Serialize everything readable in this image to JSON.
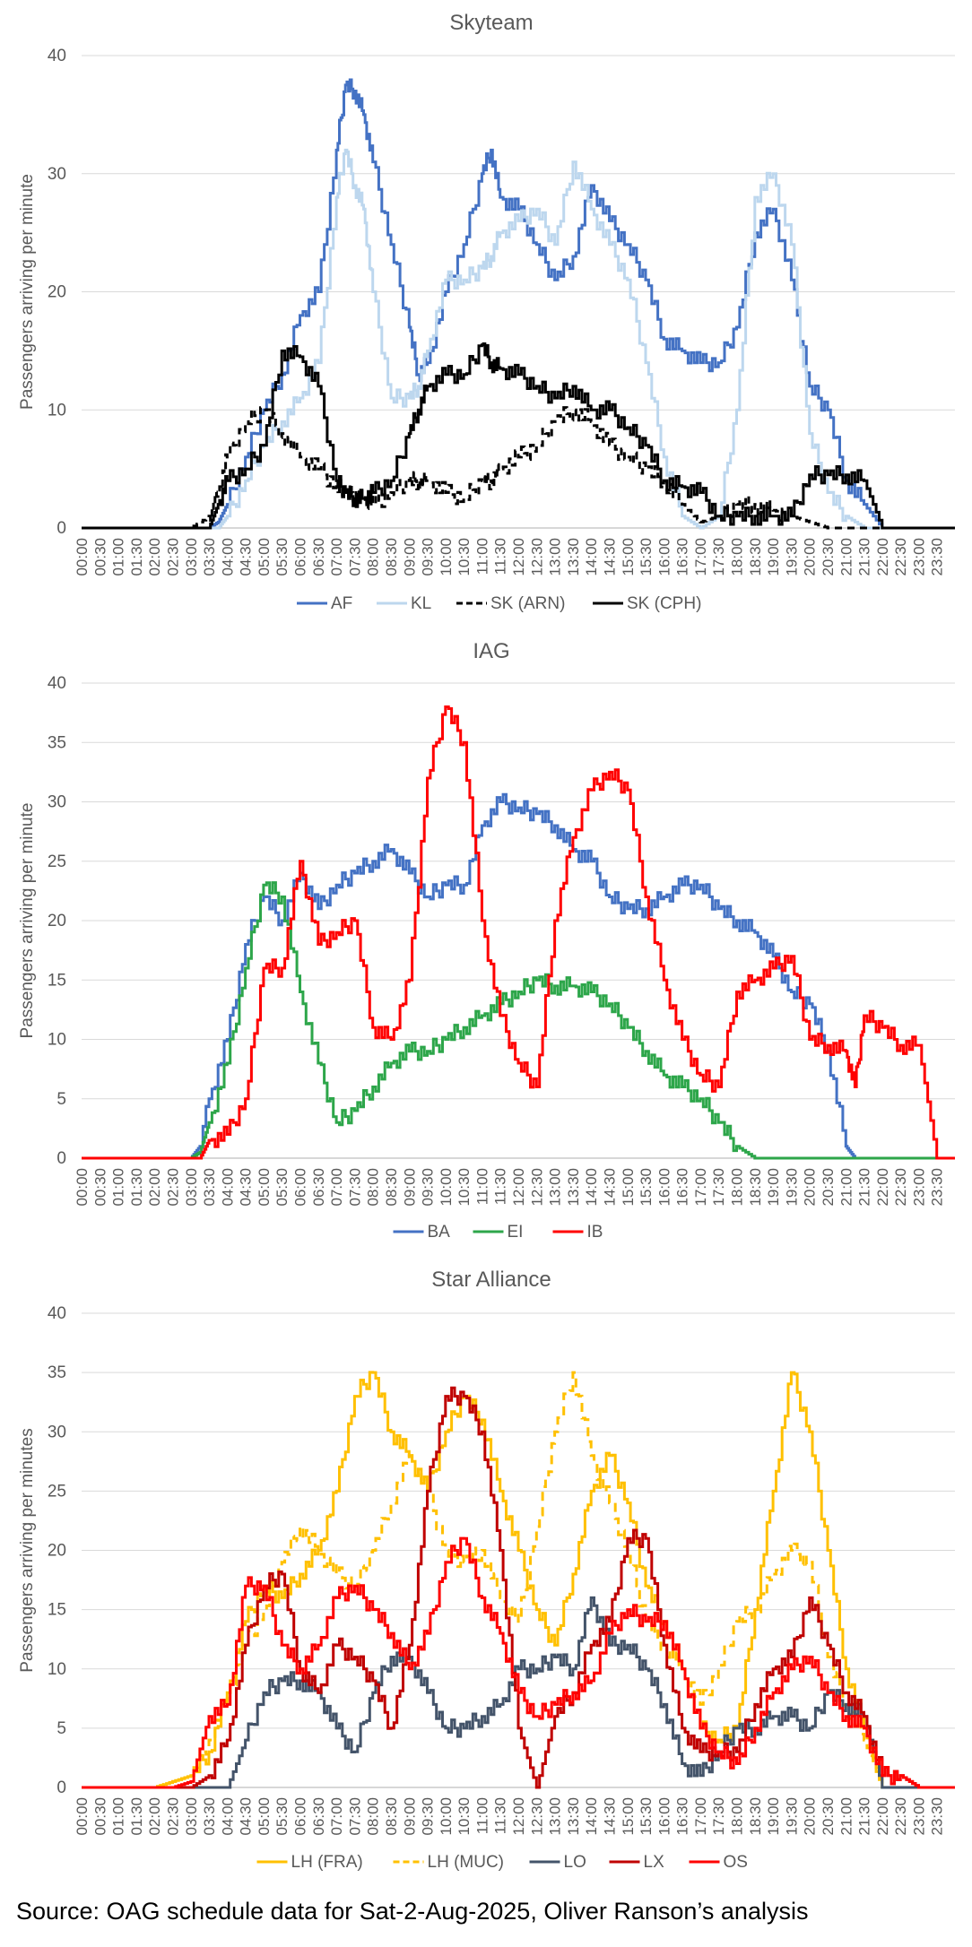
{
  "source_note": "Source: OAG schedule data for Sat-2-Aug-2025, Oliver Ranson’s analysis",
  "chart_data": [
    {
      "type": "line",
      "title": "Skyteam",
      "ylabel": "Passengers arriving per minute",
      "xlabel": "",
      "ylim": [
        0,
        40
      ],
      "yticks": [
        0,
        10,
        20,
        30,
        40
      ],
      "grid": true,
      "legend": "bottom",
      "x_ticks": [
        "00:00",
        "00:30",
        "01:00",
        "01:30",
        "02:00",
        "02:30",
        "03:00",
        "03:30",
        "04:00",
        "04:30",
        "05:00",
        "05:30",
        "06:00",
        "06:30",
        "07:00",
        "07:30",
        "08:00",
        "08:30",
        "09:00",
        "09:30",
        "10:00",
        "10:30",
        "11:00",
        "11:30",
        "12:00",
        "12:30",
        "13:00",
        "13:30",
        "14:00",
        "14:30",
        "15:00",
        "15:30",
        "16:00",
        "16:30",
        "17:00",
        "17:30",
        "18:00",
        "18:30",
        "19:00",
        "19:30",
        "20:00",
        "20:30",
        "21:00",
        "21:30",
        "22:00",
        "22:30",
        "23:00",
        "23:30"
      ],
      "x_hours": [
        0,
        1,
        2,
        2.5,
        3,
        3.5,
        3.75,
        4,
        4.5,
        5,
        5.5,
        6,
        6.5,
        7,
        7.25,
        7.5,
        7.75,
        8,
        8.5,
        9,
        9.25,
        9.5,
        10,
        10.5,
        11,
        11.25,
        11.5,
        12,
        12.5,
        13,
        13.5,
        14,
        14.5,
        15,
        15.5,
        16,
        16.5,
        17,
        17.5,
        18,
        18.5,
        19,
        19.5,
        20,
        20.5,
        21,
        21.5,
        22,
        22.5,
        23,
        24
      ],
      "series": [
        {
          "name": "AF",
          "color": "#4472C4",
          "dash": "",
          "values": [
            0,
            0,
            0,
            0,
            0,
            0,
            0.5,
            2,
            6,
            10,
            13,
            18,
            20,
            32,
            37.5,
            37,
            35,
            31,
            24,
            17,
            13,
            14,
            20,
            24,
            30,
            32,
            28,
            27,
            24,
            21,
            23,
            29,
            26,
            24,
            21,
            16,
            15,
            14,
            14,
            17,
            25,
            27,
            21,
            12,
            10,
            4,
            2,
            0,
            0,
            0,
            0
          ]
        },
        {
          "name": "KL",
          "color": "#BDD7EE",
          "dash": "",
          "values": [
            0,
            0,
            0,
            0,
            0,
            0,
            0,
            1,
            4,
            7,
            9,
            11,
            14,
            28,
            32,
            29,
            27,
            20,
            11,
            11,
            12,
            15,
            21,
            21,
            22,
            23,
            25,
            26,
            27,
            24,
            31,
            27,
            24,
            21,
            14,
            6,
            1,
            0,
            1,
            10,
            28,
            30,
            24,
            8,
            3,
            1,
            0,
            0,
            0,
            0,
            0
          ]
        },
        {
          "name": "SK (ARN)",
          "color": "#000000",
          "dash": "8 6",
          "values": [
            0,
            0,
            0,
            0,
            0,
            1,
            3,
            6,
            9,
            10,
            8,
            6,
            5,
            3.5,
            3,
            3,
            2.5,
            2,
            3,
            4,
            4,
            4,
            3,
            2.5,
            4,
            4,
            5,
            6,
            7,
            9,
            10,
            9,
            7,
            6,
            5,
            4,
            2,
            0.5,
            1,
            2,
            2,
            1.5,
            1,
            0.5,
            0,
            0,
            0,
            0,
            0,
            0,
            0
          ]
        },
        {
          "name": "SK (CPH)",
          "color": "#000000",
          "dash": "",
          "values": [
            0,
            0,
            0,
            0,
            0,
            0,
            2,
            4,
            5,
            7,
            15,
            14.5,
            12,
            4,
            3,
            2.5,
            2.5,
            3,
            4,
            8,
            10,
            12,
            13,
            13,
            15.5,
            14,
            13.5,
            13,
            12,
            11,
            12,
            10,
            10,
            8.5,
            7,
            4,
            3.5,
            3,
            1,
            1,
            1,
            1,
            1,
            4.5,
            4.5,
            4.5,
            4,
            0,
            0,
            0,
            0
          ]
        }
      ]
    },
    {
      "type": "line",
      "title": "IAG",
      "ylabel": "Passengers arriving per minute",
      "xlabel": "",
      "ylim": [
        0,
        40
      ],
      "yticks": [
        0,
        5,
        10,
        15,
        20,
        25,
        30,
        35,
        40
      ],
      "grid": true,
      "legend": "bottom",
      "x_ticks": [
        "00:00",
        "00:30",
        "01:00",
        "01:30",
        "02:00",
        "02:30",
        "03:00",
        "03:30",
        "04:00",
        "04:30",
        "05:00",
        "05:30",
        "06:00",
        "06:30",
        "07:00",
        "07:30",
        "08:00",
        "08:30",
        "09:00",
        "09:30",
        "10:00",
        "10:30",
        "11:00",
        "11:30",
        "12:00",
        "12:30",
        "13:00",
        "13:30",
        "14:00",
        "14:30",
        "15:00",
        "15:30",
        "16:00",
        "16:30",
        "17:00",
        "17:30",
        "18:00",
        "18:30",
        "19:00",
        "19:30",
        "20:00",
        "20:30",
        "21:00",
        "21:30",
        "22:00",
        "22:30",
        "23:00",
        "23:30"
      ],
      "x_hours": [
        0,
        1,
        2,
        2.5,
        3,
        3.25,
        3.5,
        4,
        4.5,
        5,
        5.5,
        6,
        6.5,
        7,
        7.5,
        8,
        8.5,
        9,
        9.5,
        10,
        10.5,
        11,
        11.5,
        12,
        12.5,
        13,
        13.5,
        14,
        14.5,
        15,
        15.5,
        16,
        16.5,
        17,
        17.5,
        18,
        18.5,
        19,
        19.5,
        20,
        20.5,
        21,
        21.25,
        21.5,
        22,
        22.5,
        23,
        23.5,
        24
      ],
      "series": [
        {
          "name": "BA",
          "color": "#4472C4",
          "dash": "",
          "values": [
            0,
            0,
            0,
            0,
            0,
            1,
            5,
            10,
            18,
            22,
            20,
            24,
            21,
            23,
            24,
            25,
            26,
            24,
            22,
            23,
            23,
            28,
            30,
            29.5,
            29,
            28,
            26,
            25,
            22,
            21,
            21,
            22,
            23,
            23,
            21,
            20,
            19,
            17,
            14,
            13,
            9,
            1,
            0,
            0,
            0,
            0,
            0,
            0,
            0
          ]
        },
        {
          "name": "EI",
          "color": "#2DA64A",
          "dash": "",
          "values": [
            0,
            0,
            0,
            0,
            0,
            0.5,
            3,
            8,
            16,
            23,
            22,
            14,
            8,
            3,
            4,
            6,
            8,
            9,
            9,
            10,
            11,
            12,
            13,
            14,
            15,
            14.5,
            14.5,
            14,
            13,
            11,
            9,
            7,
            6,
            5,
            3,
            1,
            0,
            0,
            0,
            0,
            0,
            0,
            0,
            0,
            0,
            0,
            0,
            0,
            0
          ]
        },
        {
          "name": "IB",
          "color": "#FF0000",
          "dash": "",
          "values": [
            0,
            0,
            0,
            0,
            0,
            0,
            1.5,
            2,
            5,
            16,
            16,
            25,
            18,
            19,
            20,
            11,
            10,
            15,
            32,
            38,
            35,
            20,
            12,
            8,
            6,
            20,
            27,
            31,
            32.5,
            31,
            22,
            15,
            10,
            7,
            6,
            14,
            15,
            16,
            17,
            10,
            9.5,
            9,
            6,
            12,
            11,
            9.5,
            9.5,
            0,
            0
          ]
        }
      ]
    },
    {
      "type": "line",
      "title": "Star Alliance",
      "ylabel": "Passengers arriving per minutes",
      "xlabel": "",
      "ylim": [
        0,
        40
      ],
      "yticks": [
        0,
        5,
        10,
        15,
        20,
        25,
        30,
        35,
        40
      ],
      "grid": true,
      "legend": "bottom",
      "x_ticks": [
        "00:00",
        "00:30",
        "01:00",
        "01:30",
        "02:00",
        "02:30",
        "03:00",
        "03:30",
        "04:00",
        "04:30",
        "05:00",
        "05:30",
        "06:00",
        "06:30",
        "07:00",
        "07:30",
        "08:00",
        "08:30",
        "09:00",
        "09:30",
        "10:00",
        "10:30",
        "11:00",
        "11:30",
        "12:00",
        "12:30",
        "13:00",
        "13:30",
        "14:00",
        "14:30",
        "15:00",
        "15:30",
        "16:00",
        "16:30",
        "17:00",
        "17:30",
        "18:00",
        "18:30",
        "19:00",
        "19:30",
        "20:00",
        "20:30",
        "21:00",
        "21:30",
        "22:00",
        "22:30",
        "23:00",
        "23:30"
      ],
      "x_hours": [
        0,
        1,
        2,
        2.5,
        3,
        3.5,
        4,
        4.5,
        5,
        5.5,
        6,
        6.5,
        7,
        7.5,
        8,
        8.5,
        9,
        9.5,
        10,
        10.5,
        11,
        11.5,
        12,
        12.5,
        13,
        13.5,
        14,
        14.5,
        15,
        15.5,
        16,
        16.5,
        17,
        17.5,
        18,
        18.5,
        19,
        19.5,
        20,
        20.5,
        21,
        21.5,
        22,
        22.5,
        23,
        24
      ],
      "series": [
        {
          "name": "LH (FRA)",
          "color": "#FFC000",
          "dash": "",
          "values": [
            0,
            0,
            0,
            0.5,
            1,
            3,
            8,
            14,
            17,
            16,
            18,
            20,
            25,
            33,
            35,
            30,
            28,
            25,
            30,
            33,
            31,
            25,
            20,
            15,
            12,
            18,
            25,
            28,
            24,
            17,
            14,
            10,
            5,
            4,
            5,
            15,
            25,
            35,
            30,
            20,
            10,
            5,
            0,
            0,
            0,
            0
          ]
        },
        {
          "name": "LH (MUC)",
          "color": "#FFC000",
          "dash": "10 7",
          "values": [
            0,
            0,
            0,
            0.5,
            1,
            4,
            8,
            12,
            15,
            19,
            22,
            20,
            18,
            17,
            20,
            24,
            28,
            25,
            20,
            19,
            20,
            16,
            14,
            22,
            30,
            35,
            28,
            24,
            20,
            14,
            12,
            10,
            7,
            10,
            14,
            15,
            18,
            20,
            19,
            11,
            7,
            4,
            0,
            0,
            0,
            0
          ]
        },
        {
          "name": "LO",
          "color": "#44546A",
          "dash": "",
          "values": [
            0,
            0,
            0,
            0,
            0,
            0,
            0,
            4,
            8,
            9,
            9,
            8,
            5,
            3,
            8,
            11,
            11,
            8,
            5,
            5,
            6,
            7,
            10,
            10,
            11,
            10,
            16,
            12,
            12,
            10,
            7,
            2,
            1,
            3,
            5,
            5,
            6,
            6,
            5,
            8,
            7,
            6,
            0,
            0,
            0,
            0
          ]
        },
        {
          "name": "LX",
          "color": "#C00000",
          "dash": "",
          "values": [
            0,
            0,
            0,
            0,
            0,
            1,
            4,
            12,
            17,
            18,
            10,
            8,
            12,
            11,
            9,
            5,
            12,
            25,
            33,
            33,
            30,
            20,
            5,
            0,
            6,
            8,
            12,
            14,
            21,
            21,
            12,
            5,
            3,
            3,
            3,
            7,
            10,
            11,
            16,
            12,
            8,
            6,
            1,
            1,
            0,
            0
          ]
        },
        {
          "name": "OS",
          "color": "#FF0000",
          "dash": "",
          "values": [
            0,
            0,
            0,
            0,
            0.5,
            6,
            7,
            17,
            17,
            12,
            10,
            12,
            16,
            17,
            15,
            13,
            10,
            13,
            19,
            21,
            16,
            13,
            8,
            6,
            7,
            8,
            9,
            13,
            15,
            14,
            14,
            10,
            5,
            3,
            2,
            5,
            8,
            10,
            11,
            8,
            6,
            5,
            1,
            1,
            0,
            0
          ]
        }
      ]
    }
  ]
}
